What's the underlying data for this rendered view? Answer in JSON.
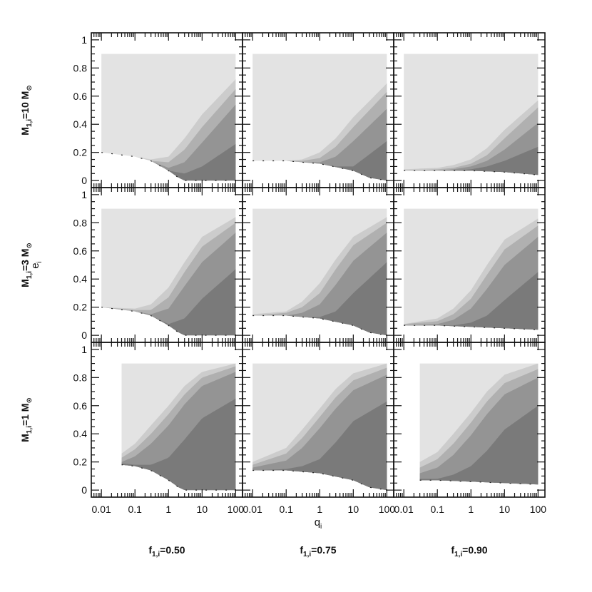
{
  "chart_data": {
    "type": "area",
    "grid": {
      "rows": 3,
      "cols": 3
    },
    "xlabel": "q",
    "xlabel_sub": "i",
    "ylabel": "e",
    "ylabel_sub": "i",
    "x_scale": "log",
    "xlim": [
      0.005,
      160
    ],
    "ylim": [
      -0.05,
      1.05
    ],
    "x_ticks": [
      0.01,
      0.1,
      1,
      10,
      100
    ],
    "x_tick_labels": [
      "0.01",
      "0.1",
      "1",
      "10",
      "100"
    ],
    "y_ticks": [
      0,
      0.2,
      0.4,
      0.6,
      0.8,
      1
    ],
    "y_tick_labels": [
      "0",
      "0.2",
      "0.4",
      "0.6",
      "0.8",
      "1"
    ],
    "e_max": 0.9,
    "row_labels": [
      {
        "main": "M",
        "sub": "1,i",
        "rest": "=10 M",
        "sun": "⊙"
      },
      {
        "main": "M",
        "sub": "1,i",
        "rest": "=3 M",
        "sun": "⊙"
      },
      {
        "main": "M",
        "sub": "1,i",
        "rest": "=1 M",
        "sun": "⊙"
      }
    ],
    "col_labels": [
      {
        "main": "f",
        "sub": "1,i",
        "rest": "=0.50"
      },
      {
        "main": "f",
        "sub": "1,i",
        "rest": "=0.75"
      },
      {
        "main": "f",
        "sub": "1,i",
        "rest": "=0.90"
      }
    ],
    "colors": {
      "band0": "#e3e3e3",
      "band1": "#cccccc",
      "band2": "#b0b0b0",
      "band3": "#949494",
      "band4": "#7a7a7a",
      "axes": "#111111"
    },
    "panels": [
      {
        "row": 0,
        "col": 0,
        "q_start": 0.01,
        "lower": {
          "q": [
            0.01,
            0.1,
            0.3,
            1,
            2,
            3,
            100
          ],
          "e": [
            0.2,
            0.17,
            0.14,
            0.07,
            0.02,
            0,
            0
          ]
        },
        "bands": [
          {
            "q": [
              0.01,
              0.1,
              0.3,
              1,
              3,
              10,
              100
            ],
            "e": [
              0.2,
              0.17,
              0.15,
              0.17,
              0.3,
              0.47,
              0.72
            ]
          },
          {
            "q": [
              0.01,
              0.1,
              0.3,
              1,
              3,
              10,
              100
            ],
            "e": [
              0.2,
              0.17,
              0.14,
              0.13,
              0.22,
              0.38,
              0.65
            ]
          },
          {
            "q": [
              0.01,
              0.1,
              0.3,
              1,
              3,
              10,
              100
            ],
            "e": [
              0.2,
              0.17,
              0.14,
              0.09,
              0.13,
              0.27,
              0.54
            ]
          },
          {
            "q": [
              0.01,
              0.1,
              0.3,
              1,
              3,
              10,
              100
            ],
            "e": [
              0.2,
              0.17,
              0.14,
              0.07,
              0.05,
              0.1,
              0.26
            ]
          }
        ]
      },
      {
        "row": 0,
        "col": 1,
        "q_start": 0.01,
        "lower": {
          "q": [
            0.01,
            0.1,
            1,
            10,
            30,
            100
          ],
          "e": [
            0.14,
            0.14,
            0.12,
            0.07,
            0.02,
            0
          ]
        },
        "bands": [
          {
            "q": [
              0.01,
              0.1,
              0.3,
              1,
              3,
              10,
              100
            ],
            "e": [
              0.14,
              0.14,
              0.15,
              0.2,
              0.3,
              0.45,
              0.69
            ]
          },
          {
            "q": [
              0.01,
              0.1,
              0.3,
              1,
              3,
              10,
              100
            ],
            "e": [
              0.14,
              0.14,
              0.14,
              0.16,
              0.24,
              0.38,
              0.63
            ]
          },
          {
            "q": [
              0.01,
              0.1,
              0.3,
              1,
              3,
              10,
              100
            ],
            "e": [
              0.14,
              0.14,
              0.13,
              0.13,
              0.17,
              0.28,
              0.51
            ]
          },
          {
            "q": [
              0.01,
              0.1,
              0.3,
              1,
              3,
              10,
              100
            ],
            "e": [
              0.14,
              0.14,
              0.13,
              0.12,
              0.1,
              0.1,
              0.28
            ]
          }
        ]
      },
      {
        "row": 0,
        "col": 2,
        "q_start": 0.01,
        "lower": {
          "q": [
            0.01,
            0.1,
            1,
            10,
            100
          ],
          "e": [
            0.07,
            0.07,
            0.07,
            0.06,
            0.04
          ]
        },
        "bands": [
          {
            "q": [
              0.01,
              0.1,
              0.3,
              1,
              3,
              10,
              100
            ],
            "e": [
              0.08,
              0.09,
              0.11,
              0.15,
              0.23,
              0.36,
              0.57
            ]
          },
          {
            "q": [
              0.01,
              0.1,
              0.3,
              1,
              3,
              10,
              100
            ],
            "e": [
              0.07,
              0.08,
              0.09,
              0.12,
              0.18,
              0.3,
              0.52
            ]
          },
          {
            "q": [
              0.01,
              0.1,
              0.3,
              1,
              3,
              10,
              100
            ],
            "e": [
              0.07,
              0.07,
              0.08,
              0.1,
              0.14,
              0.22,
              0.41
            ]
          },
          {
            "q": [
              0.01,
              0.1,
              0.3,
              1,
              3,
              10,
              100
            ],
            "e": [
              0.07,
              0.07,
              0.07,
              0.08,
              0.1,
              0.14,
              0.24
            ]
          }
        ]
      },
      {
        "row": 1,
        "col": 0,
        "q_start": 0.01,
        "lower": {
          "q": [
            0.01,
            0.1,
            0.3,
            1,
            2,
            3,
            100
          ],
          "e": [
            0.2,
            0.17,
            0.14,
            0.07,
            0.02,
            0,
            0
          ]
        },
        "bands": [
          {
            "q": [
              0.01,
              0.1,
              0.3,
              1,
              3,
              10,
              100
            ],
            "e": [
              0.2,
              0.19,
              0.22,
              0.34,
              0.52,
              0.7,
              0.84
            ]
          },
          {
            "q": [
              0.01,
              0.1,
              0.3,
              1,
              3,
              10,
              100
            ],
            "e": [
              0.2,
              0.18,
              0.18,
              0.27,
              0.45,
              0.63,
              0.8
            ]
          },
          {
            "q": [
              0.01,
              0.1,
              0.3,
              1,
              3,
              10,
              100
            ],
            "e": [
              0.2,
              0.17,
              0.15,
              0.19,
              0.35,
              0.52,
              0.73
            ]
          },
          {
            "q": [
              0.01,
              0.1,
              0.3,
              1,
              3,
              10,
              100
            ],
            "e": [
              0.2,
              0.17,
              0.14,
              0.08,
              0.12,
              0.26,
              0.47
            ]
          }
        ]
      },
      {
        "row": 1,
        "col": 1,
        "q_start": 0.01,
        "lower": {
          "q": [
            0.01,
            0.1,
            1,
            10,
            30,
            100
          ],
          "e": [
            0.14,
            0.14,
            0.12,
            0.07,
            0.02,
            0
          ]
        },
        "bands": [
          {
            "q": [
              0.01,
              0.1,
              0.3,
              1,
              3,
              10,
              100
            ],
            "e": [
              0.15,
              0.17,
              0.24,
              0.37,
              0.54,
              0.7,
              0.84
            ]
          },
          {
            "q": [
              0.01,
              0.1,
              0.3,
              1,
              3,
              10,
              100
            ],
            "e": [
              0.14,
              0.16,
              0.2,
              0.3,
              0.47,
              0.64,
              0.8
            ]
          },
          {
            "q": [
              0.01,
              0.1,
              0.3,
              1,
              3,
              10,
              100
            ],
            "e": [
              0.14,
              0.14,
              0.16,
              0.22,
              0.36,
              0.53,
              0.73
            ]
          },
          {
            "q": [
              0.01,
              0.1,
              0.3,
              1,
              3,
              10,
              100
            ],
            "e": [
              0.14,
              0.14,
              0.13,
              0.13,
              0.17,
              0.3,
              0.52
            ]
          }
        ]
      },
      {
        "row": 1,
        "col": 2,
        "q_start": 0.01,
        "lower": {
          "q": [
            0.01,
            0.1,
            1,
            10,
            100
          ],
          "e": [
            0.07,
            0.07,
            0.06,
            0.05,
            0.04
          ]
        },
        "bands": [
          {
            "q": [
              0.01,
              0.1,
              0.3,
              1,
              3,
              10,
              100
            ],
            "e": [
              0.08,
              0.12,
              0.19,
              0.32,
              0.5,
              0.68,
              0.83
            ]
          },
          {
            "q": [
              0.01,
              0.1,
              0.3,
              1,
              3,
              10,
              100
            ],
            "e": [
              0.08,
              0.1,
              0.15,
              0.26,
              0.43,
              0.61,
              0.78
            ]
          },
          {
            "q": [
              0.01,
              0.1,
              0.3,
              1,
              3,
              10,
              100
            ],
            "e": [
              0.07,
              0.08,
              0.11,
              0.19,
              0.33,
              0.5,
              0.7
            ]
          },
          {
            "q": [
              0.01,
              0.1,
              0.3,
              1,
              3,
              10,
              100
            ],
            "e": [
              0.07,
              0.07,
              0.07,
              0.09,
              0.14,
              0.25,
              0.45
            ]
          }
        ]
      },
      {
        "row": 2,
        "col": 0,
        "q_start": 0.04,
        "lower": {
          "q": [
            0.04,
            0.1,
            0.3,
            1,
            2,
            3,
            100
          ],
          "e": [
            0.18,
            0.17,
            0.14,
            0.07,
            0.02,
            0,
            0
          ]
        },
        "bands": [
          {
            "q": [
              0.04,
              0.1,
              0.3,
              1,
              3,
              10,
              100
            ],
            "e": [
              0.26,
              0.33,
              0.46,
              0.6,
              0.74,
              0.84,
              0.9
            ]
          },
          {
            "q": [
              0.04,
              0.1,
              0.3,
              1,
              3,
              10,
              100
            ],
            "e": [
              0.23,
              0.29,
              0.4,
              0.54,
              0.68,
              0.8,
              0.88
            ]
          },
          {
            "q": [
              0.04,
              0.1,
              0.3,
              1,
              3,
              10,
              100
            ],
            "e": [
              0.2,
              0.24,
              0.33,
              0.46,
              0.61,
              0.74,
              0.84
            ]
          },
          {
            "q": [
              0.04,
              0.1,
              0.3,
              1,
              3,
              10,
              100
            ],
            "e": [
              0.19,
              0.18,
              0.18,
              0.23,
              0.36,
              0.51,
              0.65
            ]
          }
        ]
      },
      {
        "row": 2,
        "col": 1,
        "q_start": 0.01,
        "lower": {
          "q": [
            0.01,
            0.1,
            1,
            10,
            30,
            100
          ],
          "e": [
            0.14,
            0.14,
            0.12,
            0.07,
            0.02,
            0
          ]
        },
        "bands": [
          {
            "q": [
              0.01,
              0.1,
              0.3,
              1,
              3,
              10,
              100
            ],
            "e": [
              0.2,
              0.3,
              0.43,
              0.58,
              0.72,
              0.83,
              0.9
            ]
          },
          {
            "q": [
              0.01,
              0.1,
              0.3,
              1,
              3,
              10,
              100
            ],
            "e": [
              0.18,
              0.26,
              0.37,
              0.52,
              0.66,
              0.78,
              0.87
            ]
          },
          {
            "q": [
              0.01,
              0.1,
              0.3,
              1,
              3,
              10,
              100
            ],
            "e": [
              0.16,
              0.21,
              0.3,
              0.44,
              0.58,
              0.71,
              0.82
            ]
          },
          {
            "q": [
              0.01,
              0.1,
              0.3,
              1,
              3,
              10,
              100
            ],
            "e": [
              0.14,
              0.15,
              0.17,
              0.22,
              0.34,
              0.49,
              0.63
            ]
          }
        ]
      },
      {
        "row": 2,
        "col": 2,
        "q_start": 0.03,
        "lower": {
          "q": [
            0.03,
            0.1,
            1,
            10,
            100
          ],
          "e": [
            0.07,
            0.07,
            0.06,
            0.05,
            0.04
          ]
        },
        "bands": [
          {
            "q": [
              0.03,
              0.1,
              0.3,
              1,
              3,
              10,
              100
            ],
            "e": [
              0.2,
              0.27,
              0.4,
              0.55,
              0.7,
              0.82,
              0.9
            ]
          },
          {
            "q": [
              0.03,
              0.1,
              0.3,
              1,
              3,
              10,
              100
            ],
            "e": [
              0.16,
              0.22,
              0.33,
              0.48,
              0.63,
              0.76,
              0.86
            ]
          },
          {
            "q": [
              0.03,
              0.1,
              0.3,
              1,
              3,
              10,
              100
            ],
            "e": [
              0.12,
              0.16,
              0.25,
              0.39,
              0.54,
              0.68,
              0.8
            ]
          },
          {
            "q": [
              0.03,
              0.1,
              0.3,
              1,
              3,
              10,
              100
            ],
            "e": [
              0.08,
              0.08,
              0.11,
              0.17,
              0.28,
              0.43,
              0.6
            ]
          }
        ]
      }
    ]
  }
}
